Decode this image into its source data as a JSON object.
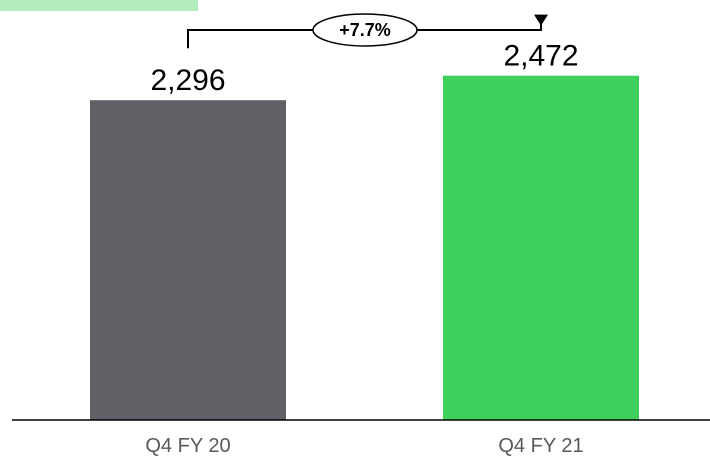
{
  "chart_data": {
    "type": "bar",
    "categories": [
      "Q4 FY 20",
      "Q4 FY 21"
    ],
    "values": [
      2296,
      2472
    ],
    "value_labels": [
      "2,296",
      "2,472"
    ],
    "change_label": "+7.7%",
    "ylim": [
      0,
      2800
    ],
    "grid": false,
    "legend": "none"
  },
  "colors": {
    "bars": [
      "#606166",
      "#3ecf5c"
    ],
    "corner_tab": "#b5ecbe",
    "axis": "#000000",
    "text": "#000000",
    "category_text": "#595959"
  }
}
